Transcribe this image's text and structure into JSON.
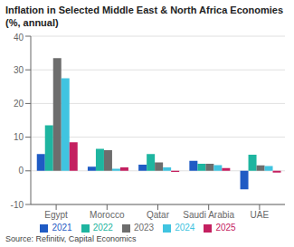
{
  "chart_data": {
    "type": "bar",
    "title": "Inflation in Selected Middle East & North Africa Economies (%, annual)",
    "annotations": [
      "Source: Refinitiv, Capital Economics"
    ],
    "categories": [
      "Egypt",
      "Morocco",
      "Qatar",
      "Saudi Arabia",
      "UAE"
    ],
    "series": [
      {
        "name": "2021",
        "color": "#1f5bc4",
        "values": [
          5.0,
          1.2,
          1.8,
          3.0,
          -5.5
        ]
      },
      {
        "name": "2022",
        "color": "#1eb5a0",
        "values": [
          13.5,
          6.5,
          5.0,
          2.1,
          4.8
        ]
      },
      {
        "name": "2023",
        "color": "#6d6d6d",
        "values": [
          33.5,
          6.1,
          2.5,
          2.1,
          1.6
        ]
      },
      {
        "name": "2024",
        "color": "#40c4e0",
        "values": [
          27.5,
          0.6,
          1.0,
          1.7,
          1.4
        ]
      },
      {
        "name": "2025",
        "color": "#c42060",
        "values": [
          8.5,
          1.0,
          -0.3,
          0.8,
          -0.5
        ]
      }
    ],
    "ylim": [
      -10,
      40
    ],
    "yticks": [
      -10,
      0,
      10,
      20,
      30,
      40
    ],
    "grid": true,
    "legend": "bottom"
  }
}
